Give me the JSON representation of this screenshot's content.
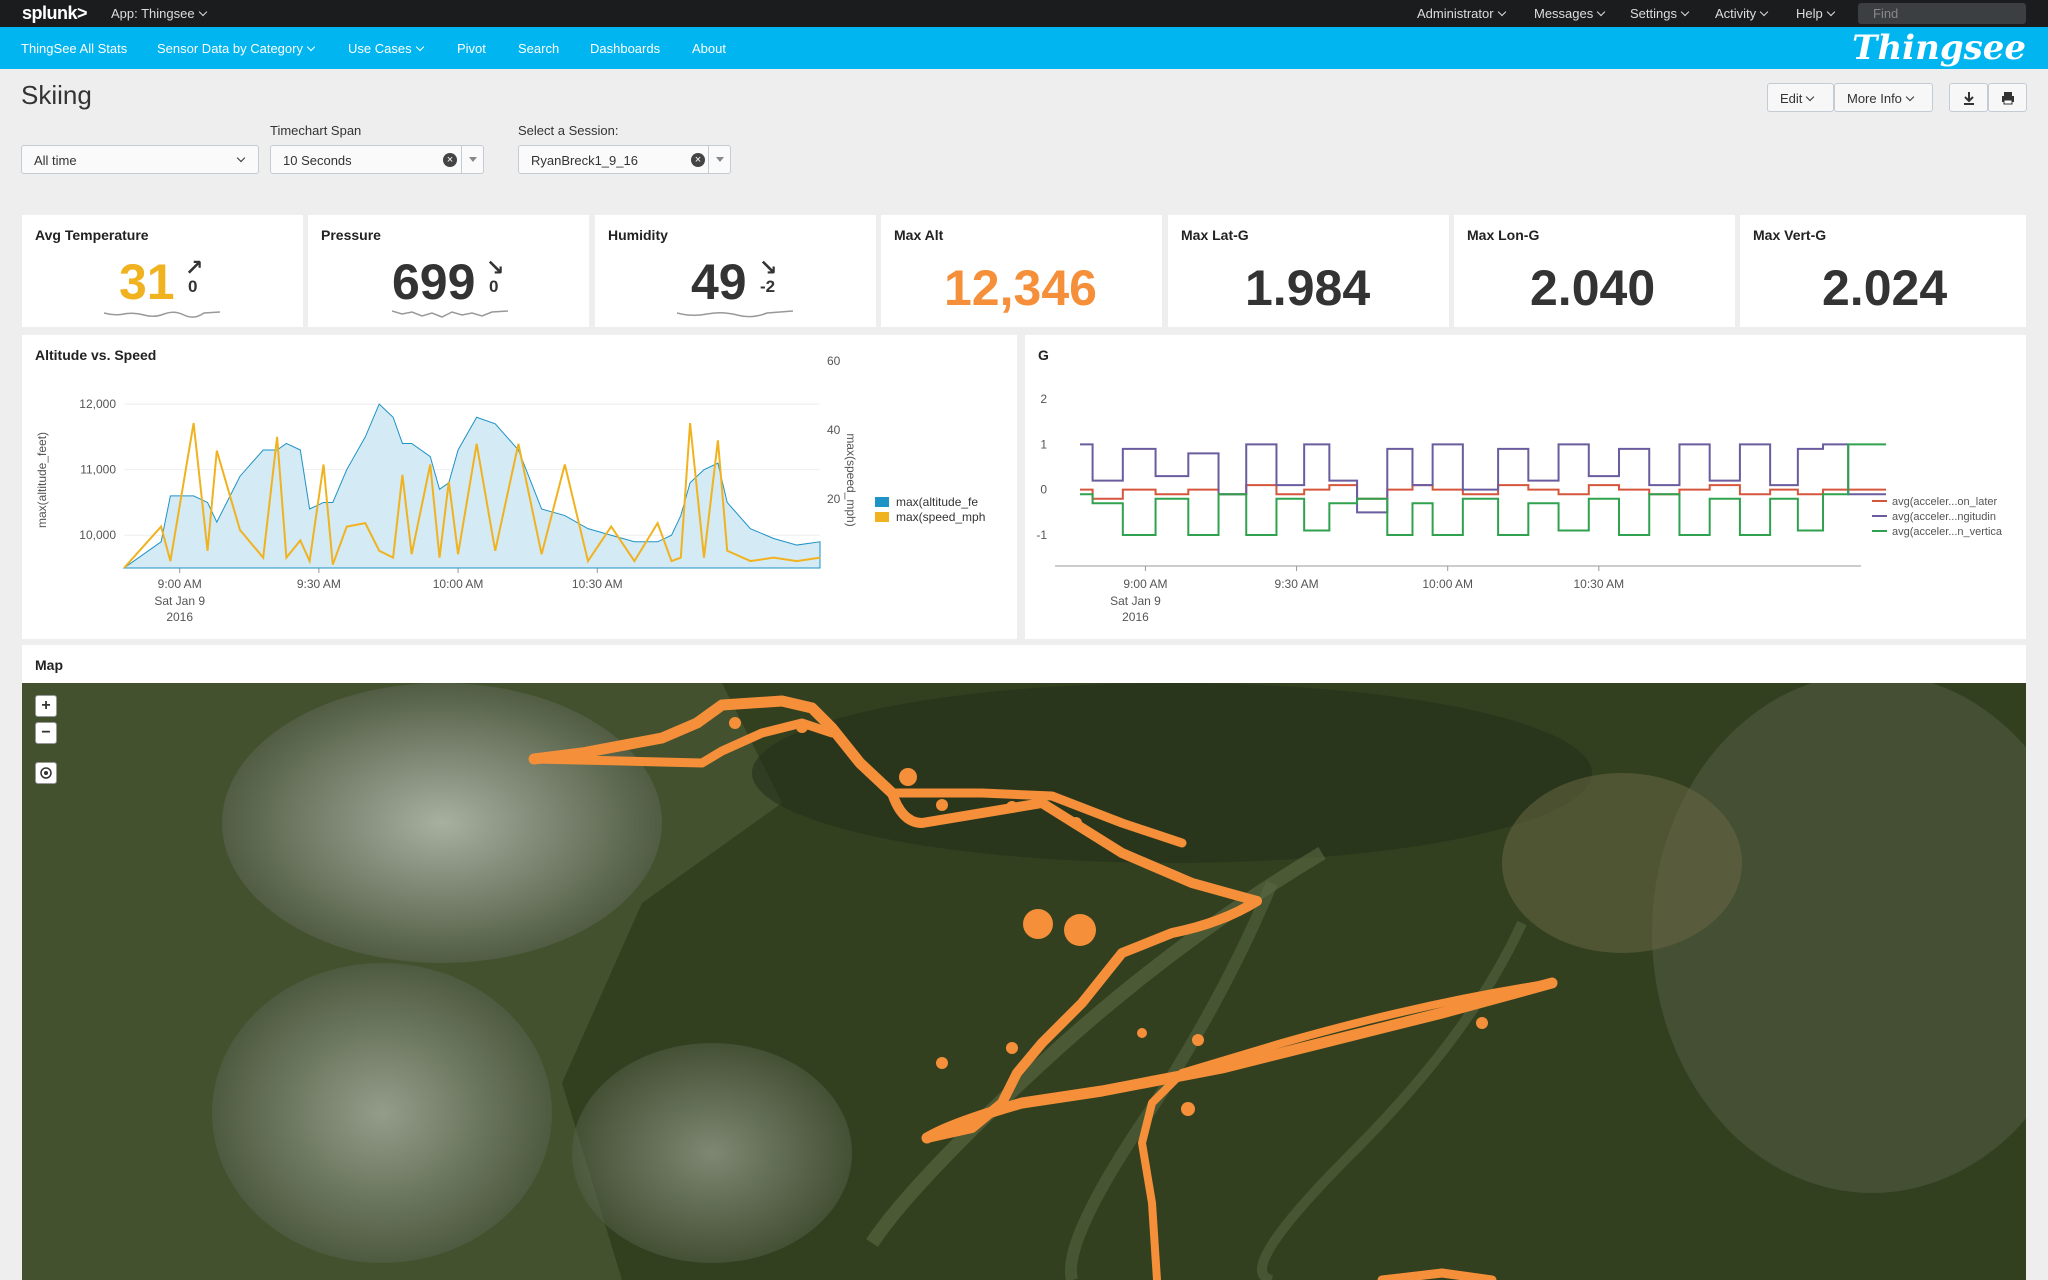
{
  "topbar": {
    "logo": "splunk>",
    "app": "App: Thingsee",
    "menus": [
      "Administrator",
      "Messages",
      "Settings",
      "Activity",
      "Help"
    ],
    "find_placeholder": "Find"
  },
  "nav": {
    "items": [
      "ThingSee All Stats",
      "Sensor Data by Category",
      "Use Cases",
      "Pivot",
      "Search",
      "Dashboards",
      "About"
    ],
    "brand": "Thingsee"
  },
  "page": {
    "title": "Skiing",
    "edit_label": "Edit",
    "more_info_label": "More Info"
  },
  "filters": {
    "time": {
      "value": "All time"
    },
    "span": {
      "label": "Timechart Span",
      "value": "10 Seconds"
    },
    "session": {
      "label": "Select a Session:",
      "value": "RyanBreck1_9_16"
    }
  },
  "singles": [
    {
      "title": "Avg Temperature",
      "value": "31",
      "delta": "0",
      "color": "#f1b21f"
    },
    {
      "title": "Pressure",
      "value": "699",
      "delta": "0",
      "color": "#333333"
    },
    {
      "title": "Humidity",
      "value": "49",
      "delta": "-2",
      "color": "#333333"
    },
    {
      "title": "Max Alt",
      "value": "12,346",
      "color": "#f58f39"
    },
    {
      "title": "Max Lat-G",
      "value": "1.984",
      "color": "#333333"
    },
    {
      "title": "Max Lon-G",
      "value": "2.040",
      "color": "#333333"
    },
    {
      "title": "Max Vert-G",
      "value": "2.024",
      "color": "#333333"
    }
  ],
  "chart_data": [
    {
      "type": "area",
      "title": "Altitude vs. Speed",
      "ylabel": "max(altitude_feet)",
      "y2label": "max(speed_mph)",
      "ylim": [
        9500,
        12200
      ],
      "y2lim": [
        0,
        60
      ],
      "yticks": [
        "10,000",
        "11,000",
        "12,000"
      ],
      "y2ticks": [
        "20",
        "40",
        "60"
      ],
      "xticks": [
        {
          "label": "9:00 AM",
          "sub": [
            "Sat Jan 9",
            "2016"
          ]
        },
        {
          "label": "9:30 AM",
          "sub": []
        },
        {
          "label": "10:00 AM",
          "sub": []
        },
        {
          "label": "10:30 AM",
          "sub": []
        }
      ],
      "x_minutes": [
        0,
        8,
        10,
        15,
        18,
        20,
        25,
        30,
        33,
        35,
        38,
        40,
        43,
        45,
        48,
        52,
        55,
        58,
        60,
        62,
        66,
        68,
        70,
        72,
        76,
        80,
        85,
        90,
        95,
        100,
        105,
        110,
        115,
        118,
        120,
        122,
        125,
        128,
        130,
        135,
        140,
        145,
        150
      ],
      "series": [
        {
          "name": "max(altitude_fe",
          "color": "#1e93c6",
          "values": [
            9500,
            9900,
            10600,
            10600,
            10500,
            10200,
            10900,
            11300,
            11300,
            11400,
            11300,
            10400,
            10500,
            10500,
            11000,
            11500,
            12000,
            11800,
            11400,
            11400,
            11200,
            10700,
            10800,
            11300,
            11800,
            11700,
            11300,
            10400,
            10300,
            10100,
            10000,
            9900,
            9900,
            10000,
            10300,
            10800,
            11000,
            11100,
            10500,
            10100,
            9950,
            9850,
            9900
          ]
        },
        {
          "name": "max(speed_mph",
          "color": "#f1b21f",
          "values": [
            0,
            12,
            2,
            42,
            5,
            34,
            11,
            3,
            38,
            3,
            8,
            2,
            30,
            1,
            12,
            13,
            5,
            3,
            27,
            4,
            30,
            3,
            25,
            4,
            36,
            5,
            36,
            4,
            30,
            2,
            12,
            2,
            13,
            2,
            3,
            42,
            3,
            37,
            5,
            2,
            3,
            2,
            3
          ]
        }
      ],
      "legend": "right"
    },
    {
      "type": "line",
      "title": "G",
      "ylim": [
        -1.5,
        2
      ],
      "yticks": [
        "2",
        "1",
        "0",
        "-1"
      ],
      "xticks": [
        {
          "label": "9:00 AM",
          "sub": [
            "Sat Jan 9",
            "2016"
          ]
        },
        {
          "label": "9:30 AM",
          "sub": []
        },
        {
          "label": "10:00 AM",
          "sub": []
        },
        {
          "label": "10:30 AM",
          "sub": []
        }
      ],
      "x_minutes": [
        0,
        5,
        12,
        18,
        25,
        30,
        36,
        42,
        47,
        52,
        58,
        64,
        68,
        72,
        80,
        86,
        92,
        98,
        104,
        110,
        116,
        122,
        128,
        134,
        140,
        145,
        150,
        155,
        160
      ],
      "series": [
        {
          "name": "avg(acceler...on_later",
          "color": "#d6563c",
          "values": [
            0,
            -0.2,
            0,
            -0.1,
            0,
            -0.1,
            0.1,
            -0.1,
            0,
            0.1,
            -0.2,
            0,
            0.1,
            0,
            -0.1,
            0.1,
            0,
            -0.1,
            0.1,
            0,
            -0.1,
            0,
            0.1,
            -0.1,
            0,
            -0.1,
            0,
            0,
            0
          ]
        },
        {
          "name": "avg(acceler...ngitudin",
          "color": "#6a5c9e",
          "values": [
            1,
            0.2,
            0.9,
            0.3,
            0.8,
            -0.1,
            1,
            0.1,
            1,
            0.2,
            -0.5,
            0.9,
            0.1,
            1,
            0,
            0.9,
            0.2,
            1,
            0.3,
            0.9,
            0.1,
            1,
            0.2,
            1,
            0.1,
            0.9,
            1,
            -0.1,
            -0.1
          ]
        },
        {
          "name": "avg(acceler...n_vertica",
          "color": "#30a14e",
          "values": [
            -0.1,
            -0.3,
            -1,
            -0.2,
            -1,
            -0.1,
            -1,
            -0.2,
            -0.9,
            -0.3,
            -0.2,
            -1,
            -0.3,
            -1,
            -0.2,
            -1,
            -0.3,
            -0.9,
            -0.2,
            -1,
            -0.1,
            -1,
            -0.2,
            -1,
            -0.2,
            -0.9,
            -0.1,
            1,
            1
          ]
        }
      ],
      "legend": "right"
    }
  ],
  "map": {
    "title": "Map",
    "zoom_in": "+",
    "zoom_out": "−",
    "track_color": "#f58f39"
  },
  "icons": [
    "download-icon",
    "print-icon",
    "locate-icon",
    "trend-up-icon",
    "trend-down-icon"
  ]
}
